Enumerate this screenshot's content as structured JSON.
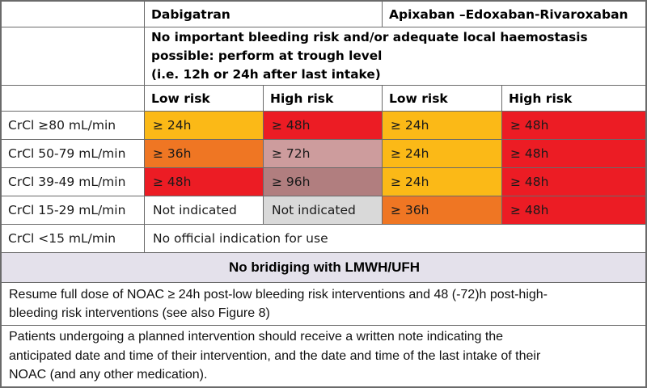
{
  "colors": {
    "amber": "#FBB917",
    "orange": "#EF7623",
    "red": "#EC1C24",
    "rose": "#CD9C9D",
    "mauve": "#B17E7F",
    "gray": "#D9D9D9",
    "white": "#FFFFFF",
    "lavender": "#E4E1EB",
    "border": "#6A6A6A"
  },
  "header": {
    "drug_group_1": "Dabigatran",
    "drug_group_2": "Apixaban –Edoxaban-Rivaroxaban",
    "trough_note": "No important bleeding risk and/or adequate local haemostasis\npossible: perform at trough level\n(i.e. 12h or 24h after last intake)",
    "risk_labels": [
      "Low risk",
      "High risk",
      "Low risk",
      "High risk"
    ]
  },
  "rows": [
    {
      "label": "CrCl ≥80 mL/min",
      "cells": [
        {
          "text": "≥ 24h",
          "color": "amber"
        },
        {
          "text": "≥ 48h",
          "color": "red"
        },
        {
          "text": "≥ 24h",
          "color": "amber"
        },
        {
          "text": "≥ 48h",
          "color": "red"
        }
      ]
    },
    {
      "label": "CrCl 50-79 mL/min",
      "cells": [
        {
          "text": "≥ 36h",
          "color": "orange"
        },
        {
          "text": "≥ 72h",
          "color": "rose"
        },
        {
          "text": "≥ 24h",
          "color": "amber"
        },
        {
          "text": "≥ 48h",
          "color": "red"
        }
      ]
    },
    {
      "label": "CrCl 39-49 mL/min",
      "cells": [
        {
          "text": "≥ 48h",
          "color": "red"
        },
        {
          "text": "≥ 96h",
          "color": "mauve"
        },
        {
          "text": "≥ 24h",
          "color": "amber"
        },
        {
          "text": "≥ 48h",
          "color": "red"
        }
      ]
    },
    {
      "label": "CrCl 15-29 mL/min",
      "cells": [
        {
          "text": "Not indicated",
          "color": "white"
        },
        {
          "text": "Not indicated",
          "color": "gray"
        },
        {
          "text": "≥ 36h",
          "color": "orange"
        },
        {
          "text": "≥ 48h",
          "color": "red"
        }
      ]
    }
  ],
  "no_indication_row": {
    "label": "CrCl <15 mL/min",
    "text": "No official indication for use"
  },
  "footer": {
    "bridging_bar": "No bridiging with LMWH/UFH",
    "resume_note": "Resume full dose of NOAC ≥ 24h post-low bleeding risk interventions and 48 (-72)h post-high-\nbleeding risk interventions (see also Figure 8)",
    "patients_note": "Patients undergoing a planned intervention should receive a written note indicating the\nanticipated date and time of their intervention, and the date and time of the last intake of their\nNOAC (and any other medication)."
  }
}
